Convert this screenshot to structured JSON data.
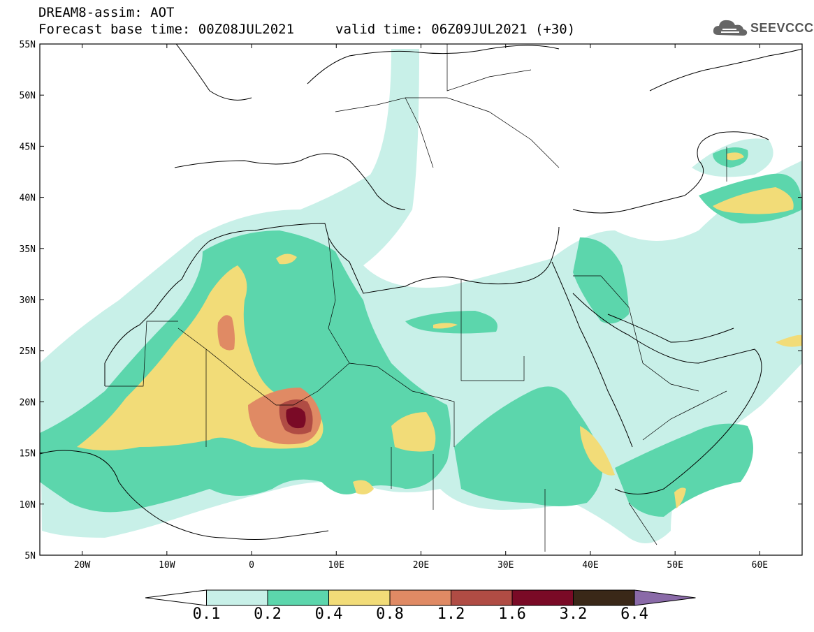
{
  "header": {
    "title_line1": "DREAM8-assim: AOT",
    "title_line2": "Forecast base time: 00Z08JUL2021",
    "valid_text": "valid time: 06Z09JUL2021 (+30)",
    "logo_text": "SEEVCCC"
  },
  "map": {
    "lon_range": [
      -25,
      65
    ],
    "lat_range": [
      5,
      55
    ],
    "x_ticks": [
      "20W",
      "10W",
      "0",
      "10E",
      "20E",
      "30E",
      "40E",
      "50E",
      "60E"
    ],
    "y_ticks": [
      "55N",
      "50N",
      "45N",
      "40N",
      "35N",
      "30N",
      "25N",
      "20N",
      "15N",
      "10N",
      "5N"
    ]
  },
  "legend": {
    "labels": [
      "0.1",
      "0.2",
      "0.4",
      "0.8",
      "1.2",
      "1.6",
      "3.2",
      "6.4"
    ],
    "colors": [
      "#ffffff",
      "#c8f0e8",
      "#5cd6ac",
      "#f2dc78",
      "#e08a64",
      "#b04c44",
      "#7a0a26",
      "#3a2818",
      "#8a6aa8"
    ]
  }
}
